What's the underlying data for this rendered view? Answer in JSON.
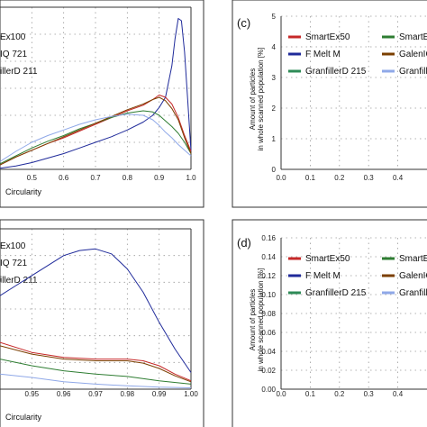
{
  "chart_data": [
    {
      "type": "line",
      "xlabel": "Circularity",
      "xlim": [
        0.4,
        1.0
      ],
      "x_ticks": [
        "0.5",
        "0.6",
        "0.7",
        "0.8",
        "0.9",
        "1.0"
      ],
      "legend_labels": [
        "Ex100",
        "IQ 721",
        "illerD 211"
      ],
      "grid": true,
      "series": [
        {
          "color": "#1f2a9a",
          "x": [
            0.4,
            0.45,
            0.5,
            0.55,
            0.6,
            0.65,
            0.7,
            0.75,
            0.8,
            0.85,
            0.88,
            0.9,
            0.92,
            0.94,
            0.95,
            0.96,
            0.97,
            0.98,
            0.99,
            1.0
          ],
          "y": [
            0.05,
            0.15,
            0.3,
            0.5,
            0.7,
            0.95,
            1.2,
            1.45,
            1.75,
            2.1,
            2.4,
            2.75,
            3.2,
            4.6,
            5.8,
            6.7,
            6.6,
            5.2,
            3.0,
            0.8
          ]
        },
        {
          "color": "#c62828",
          "x": [
            0.4,
            0.45,
            0.5,
            0.55,
            0.6,
            0.65,
            0.7,
            0.75,
            0.8,
            0.85,
            0.88,
            0.9,
            0.92,
            0.94,
            0.96,
            0.98,
            1.0
          ],
          "y": [
            0.2,
            0.55,
            0.85,
            1.15,
            1.4,
            1.7,
            2.0,
            2.3,
            2.6,
            2.85,
            3.1,
            3.3,
            3.2,
            2.9,
            2.3,
            1.5,
            0.8
          ]
        },
        {
          "color": "#2e7d32",
          "x": [
            0.4,
            0.45,
            0.5,
            0.55,
            0.6,
            0.65,
            0.7,
            0.75,
            0.8,
            0.85,
            0.88,
            0.9,
            0.92,
            0.94,
            0.96,
            0.98,
            1.0
          ],
          "y": [
            0.25,
            0.6,
            0.95,
            1.25,
            1.5,
            1.8,
            2.05,
            2.3,
            2.5,
            2.6,
            2.55,
            2.4,
            2.15,
            1.9,
            1.6,
            1.2,
            0.7
          ]
        },
        {
          "color": "#7b3f00",
          "x": [
            0.4,
            0.45,
            0.5,
            0.55,
            0.6,
            0.65,
            0.7,
            0.75,
            0.8,
            0.85,
            0.88,
            0.9,
            0.92,
            0.94,
            0.96,
            0.98,
            1.0
          ],
          "y": [
            0.2,
            0.55,
            0.85,
            1.15,
            1.45,
            1.75,
            2.05,
            2.35,
            2.65,
            2.9,
            3.1,
            3.2,
            3.05,
            2.7,
            2.2,
            1.4,
            0.7
          ]
        },
        {
          "color": "#8fa8e8",
          "x": [
            0.4,
            0.45,
            0.5,
            0.55,
            0.6,
            0.65,
            0.7,
            0.75,
            0.8,
            0.85,
            0.88,
            0.9,
            0.92,
            0.94,
            0.96,
            0.98,
            1.0
          ],
          "y": [
            0.35,
            0.8,
            1.2,
            1.5,
            1.75,
            2.0,
            2.2,
            2.35,
            2.45,
            2.4,
            2.2,
            1.95,
            1.65,
            1.4,
            1.1,
            0.85,
            0.6
          ]
        }
      ]
    },
    {
      "type": "line",
      "panel_label": "(c)",
      "ylabel_line1": "Amount of particles",
      "ylabel_line2": "in whole scanned population [%]",
      "xlim": [
        0.0,
        0.5
      ],
      "ylim": [
        0,
        5
      ],
      "x_ticks": [
        "0.0",
        "0.1",
        "0.2",
        "0.3",
        "0.4"
      ],
      "y_ticks": [
        "0",
        "1",
        "2",
        "3",
        "4",
        "5"
      ],
      "grid": true,
      "legend": [
        {
          "label": "SmartEx50",
          "color": "#c62828"
        },
        {
          "label": "SmartEx",
          "color": "#2e7d32"
        },
        {
          "label": "F Melt M",
          "color": "#1f2a9a"
        },
        {
          "label": "GalenIQ",
          "color": "#7b3f00"
        },
        {
          "label": "GranfillerD 215",
          "color": "#2e8b57"
        },
        {
          "label": "Granfiller",
          "color": "#8fa8e8"
        }
      ]
    },
    {
      "type": "line",
      "xlabel": "Circularity",
      "xlim": [
        0.94,
        1.0
      ],
      "x_ticks": [
        "0.95",
        "0.96",
        "0.97",
        "0.98",
        "0.99",
        "1.00"
      ],
      "legend_labels": [
        "Ex100",
        "IQ 721",
        "illerD 211"
      ],
      "grid": true,
      "series": [
        {
          "color": "#1f2a9a",
          "x": [
            0.94,
            0.945,
            0.95,
            0.955,
            0.96,
            0.965,
            0.97,
            0.975,
            0.98,
            0.985,
            0.99,
            0.995,
            1.0
          ],
          "y": [
            2.8,
            3.1,
            3.4,
            3.7,
            4.0,
            4.15,
            4.2,
            4.05,
            3.6,
            2.9,
            2.0,
            1.2,
            0.5
          ]
        },
        {
          "color": "#c62828",
          "x": [
            0.94,
            0.95,
            0.96,
            0.97,
            0.98,
            0.985,
            0.99,
            0.995,
            1.0
          ],
          "y": [
            1.4,
            1.1,
            0.95,
            0.9,
            0.9,
            0.85,
            0.7,
            0.45,
            0.25
          ]
        },
        {
          "color": "#7b3f00",
          "x": [
            0.94,
            0.95,
            0.96,
            0.97,
            0.98,
            0.985,
            0.99,
            0.995,
            1.0
          ],
          "y": [
            1.3,
            1.05,
            0.9,
            0.85,
            0.85,
            0.78,
            0.62,
            0.4,
            0.22
          ]
        },
        {
          "color": "#2e7d32",
          "x": [
            0.94,
            0.95,
            0.96,
            0.97,
            0.98,
            0.99,
            1.0
          ],
          "y": [
            0.9,
            0.7,
            0.55,
            0.45,
            0.38,
            0.25,
            0.15
          ]
        },
        {
          "color": "#8fa8e8",
          "x": [
            0.94,
            0.95,
            0.96,
            0.97,
            0.98,
            0.99,
            1.0
          ],
          "y": [
            0.45,
            0.35,
            0.22,
            0.15,
            0.1,
            0.06,
            0.04
          ]
        }
      ]
    },
    {
      "type": "line",
      "panel_label": "(d)",
      "ylabel_line1": "Amount of particles",
      "ylabel_line2": "in whole scanned population [%]",
      "xlim": [
        0.0,
        0.5
      ],
      "ylim": [
        0,
        0.16
      ],
      "x_ticks": [
        "0.0",
        "0.1",
        "0.2",
        "0.3",
        "0.4"
      ],
      "y_ticks": [
        "0.00",
        "0.02",
        "0.04",
        "0.06",
        "0.08",
        "0.10",
        "0.12",
        "0.14",
        "0.16"
      ],
      "grid": true,
      "legend": [
        {
          "label": "SmartEx50",
          "color": "#c62828"
        },
        {
          "label": "SmartEx",
          "color": "#2e7d32"
        },
        {
          "label": "F Melt M",
          "color": "#1f2a9a"
        },
        {
          "label": "GalenIQ",
          "color": "#7b3f00"
        },
        {
          "label": "GranfillerD 215",
          "color": "#2e8b57"
        },
        {
          "label": "Granfiller",
          "color": "#8fa8e8"
        }
      ]
    }
  ]
}
